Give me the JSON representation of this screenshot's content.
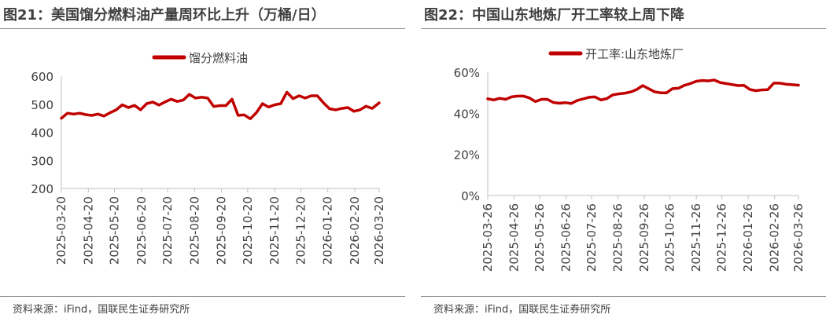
{
  "charts": [
    {
      "id": "left",
      "figure_title": "图21：美国馏分燃料油产量周环比上升（万桶/日）",
      "source": "资料来源：iFind，国联民生证券研究所",
      "color": "#c00000"
    },
    {
      "id": "right",
      "figure_title": "图22：中国山东地炼厂开工率较上周下降",
      "source": "资料来源：iFind，国联民生证券研究所",
      "color": "#c00000"
    }
  ],
  "chart_data": [
    {
      "type": "line",
      "title": "图21：美国馏分燃料油产量周环比上升（万桶/日）",
      "xlabel": "",
      "ylabel": "",
      "ylim": [
        200,
        600
      ],
      "yticks": [
        200,
        300,
        400,
        500,
        600
      ],
      "ytick_labels": [
        "200",
        "300",
        "400",
        "500",
        "600"
      ],
      "xticks": [
        "2025-03-20",
        "2025-04-20",
        "2025-05-20",
        "2025-06-20",
        "2025-07-20",
        "2025-08-20",
        "2025-09-20",
        "2025-10-20",
        "2025-11-20",
        "2025-12-20",
        "2026-01-20",
        "2026-02-20",
        "2026-03-20"
      ],
      "legend": "top-center",
      "grid": false,
      "series": [
        {
          "name": "馏分燃料油",
          "color": "#c00000",
          "x": [
            "2025-03-20",
            "2025-03-27",
            "2025-04-03",
            "2025-04-10",
            "2025-04-17",
            "2025-04-24",
            "2025-05-01",
            "2025-05-08",
            "2025-05-15",
            "2025-05-22",
            "2025-05-29",
            "2025-06-05",
            "2025-06-12",
            "2025-06-19",
            "2025-06-26",
            "2025-07-03",
            "2025-07-10",
            "2025-07-17",
            "2025-07-24",
            "2025-07-31",
            "2025-08-07",
            "2025-08-14",
            "2025-08-21",
            "2025-08-28",
            "2025-09-04",
            "2025-09-11",
            "2025-09-18",
            "2025-09-25",
            "2025-10-02",
            "2025-10-09",
            "2025-10-16",
            "2025-10-23",
            "2025-10-30",
            "2025-11-06",
            "2025-11-13",
            "2025-11-20",
            "2025-11-27",
            "2025-12-04",
            "2025-12-11",
            "2025-12-18",
            "2025-12-25",
            "2026-01-01",
            "2026-01-08",
            "2026-01-15",
            "2026-01-22",
            "2026-01-29",
            "2026-02-05",
            "2026-02-12",
            "2026-02-19",
            "2026-02-26",
            "2026-03-05",
            "2026-03-12",
            "2026-03-20"
          ],
          "values": [
            450,
            468,
            465,
            468,
            463,
            460,
            465,
            458,
            470,
            480,
            498,
            488,
            496,
            480,
            502,
            508,
            497,
            508,
            518,
            510,
            515,
            535,
            522,
            525,
            522,
            492,
            495,
            495,
            518,
            460,
            462,
            448,
            470,
            502,
            490,
            498,
            502,
            543,
            520,
            530,
            522,
            530,
            530,
            505,
            484,
            480,
            485,
            488,
            475,
            480,
            493,
            485,
            505
          ]
        }
      ]
    },
    {
      "type": "line",
      "title": "图22：中国山东地炼厂开工率较上周下降",
      "xlabel": "",
      "ylabel": "",
      "ylim": [
        0,
        0.6
      ],
      "yticks": [
        0,
        0.2,
        0.4,
        0.6
      ],
      "ytick_labels": [
        "0%",
        "20%",
        "40%",
        "60%"
      ],
      "xticks": [
        "2025-03-26",
        "2025-04-26",
        "2025-05-26",
        "2025-06-26",
        "2025-07-26",
        "2025-08-26",
        "2025-09-26",
        "2025-10-26",
        "2025-11-26",
        "2025-12-26",
        "2026-01-26",
        "2026-02-26",
        "2026-03-26"
      ],
      "legend": "top-center",
      "grid": false,
      "series": [
        {
          "name": "开工率:山东地炼厂",
          "color": "#c00000",
          "x": [
            "2025-03-26",
            "2025-04-02",
            "2025-04-09",
            "2025-04-16",
            "2025-04-23",
            "2025-04-30",
            "2025-05-07",
            "2025-05-14",
            "2025-05-21",
            "2025-05-28",
            "2025-06-04",
            "2025-06-11",
            "2025-06-18",
            "2025-06-25",
            "2025-07-02",
            "2025-07-09",
            "2025-07-16",
            "2025-07-23",
            "2025-07-30",
            "2025-08-06",
            "2025-08-13",
            "2025-08-20",
            "2025-08-27",
            "2025-09-03",
            "2025-09-10",
            "2025-09-17",
            "2025-09-24",
            "2025-10-01",
            "2025-10-08",
            "2025-10-15",
            "2025-10-22",
            "2025-10-29",
            "2025-11-05",
            "2025-11-12",
            "2025-11-19",
            "2025-11-26",
            "2025-12-03",
            "2025-12-10",
            "2025-12-17",
            "2025-12-24",
            "2025-12-31",
            "2026-01-07",
            "2026-01-14",
            "2026-01-21",
            "2026-01-28",
            "2026-02-04",
            "2026-02-11",
            "2026-02-18",
            "2026-02-25",
            "2026-03-04",
            "2026-03-11",
            "2026-03-18",
            "2026-03-26"
          ],
          "values": [
            0.471,
            0.465,
            0.473,
            0.468,
            0.48,
            0.484,
            0.484,
            0.475,
            0.457,
            0.468,
            0.468,
            0.453,
            0.449,
            0.452,
            0.448,
            0.462,
            0.47,
            0.478,
            0.48,
            0.465,
            0.472,
            0.49,
            0.495,
            0.498,
            0.504,
            0.516,
            0.535,
            0.52,
            0.505,
            0.5,
            0.5,
            0.52,
            0.522,
            0.536,
            0.545,
            0.556,
            0.56,
            0.558,
            0.562,
            0.55,
            0.545,
            0.54,
            0.535,
            0.536,
            0.516,
            0.51,
            0.514,
            0.515,
            0.547,
            0.547,
            0.542,
            0.54,
            0.537
          ]
        }
      ]
    }
  ]
}
